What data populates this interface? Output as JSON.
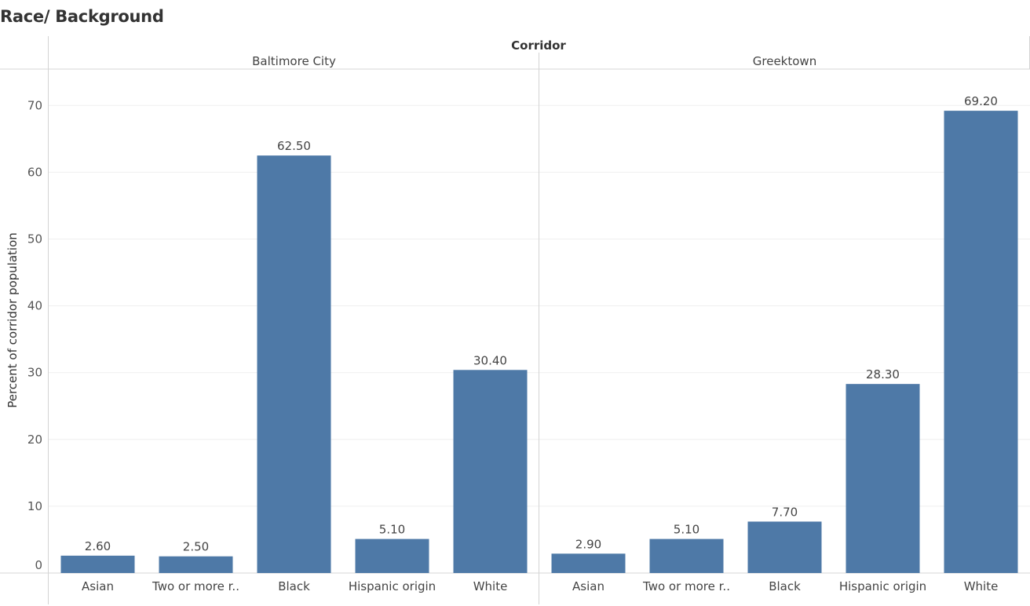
{
  "title": "Race/ Background",
  "chart_data": {
    "type": "bar",
    "column_header": "Corridor",
    "ylabel": "Percent of corridor population",
    "ylim": [
      0,
      75
    ],
    "yticks": [
      0,
      10,
      20,
      30,
      40,
      50,
      60,
      70
    ],
    "grid": true,
    "bar_color": "#4e79a7",
    "categories": [
      "Asian",
      "Two or more r..",
      "Black",
      "Hispanic origin",
      "White"
    ],
    "panels": [
      {
        "name": "Baltimore City",
        "values": [
          2.6,
          2.5,
          62.5,
          5.1,
          30.4
        ],
        "labels": [
          "2.60",
          "2.50",
          "62.50",
          "5.10",
          "30.40"
        ]
      },
      {
        "name": "Greektown",
        "values": [
          2.9,
          5.1,
          7.7,
          28.3,
          69.2
        ],
        "labels": [
          "2.90",
          "5.10",
          "7.70",
          "28.30",
          "69.20"
        ]
      }
    ]
  }
}
